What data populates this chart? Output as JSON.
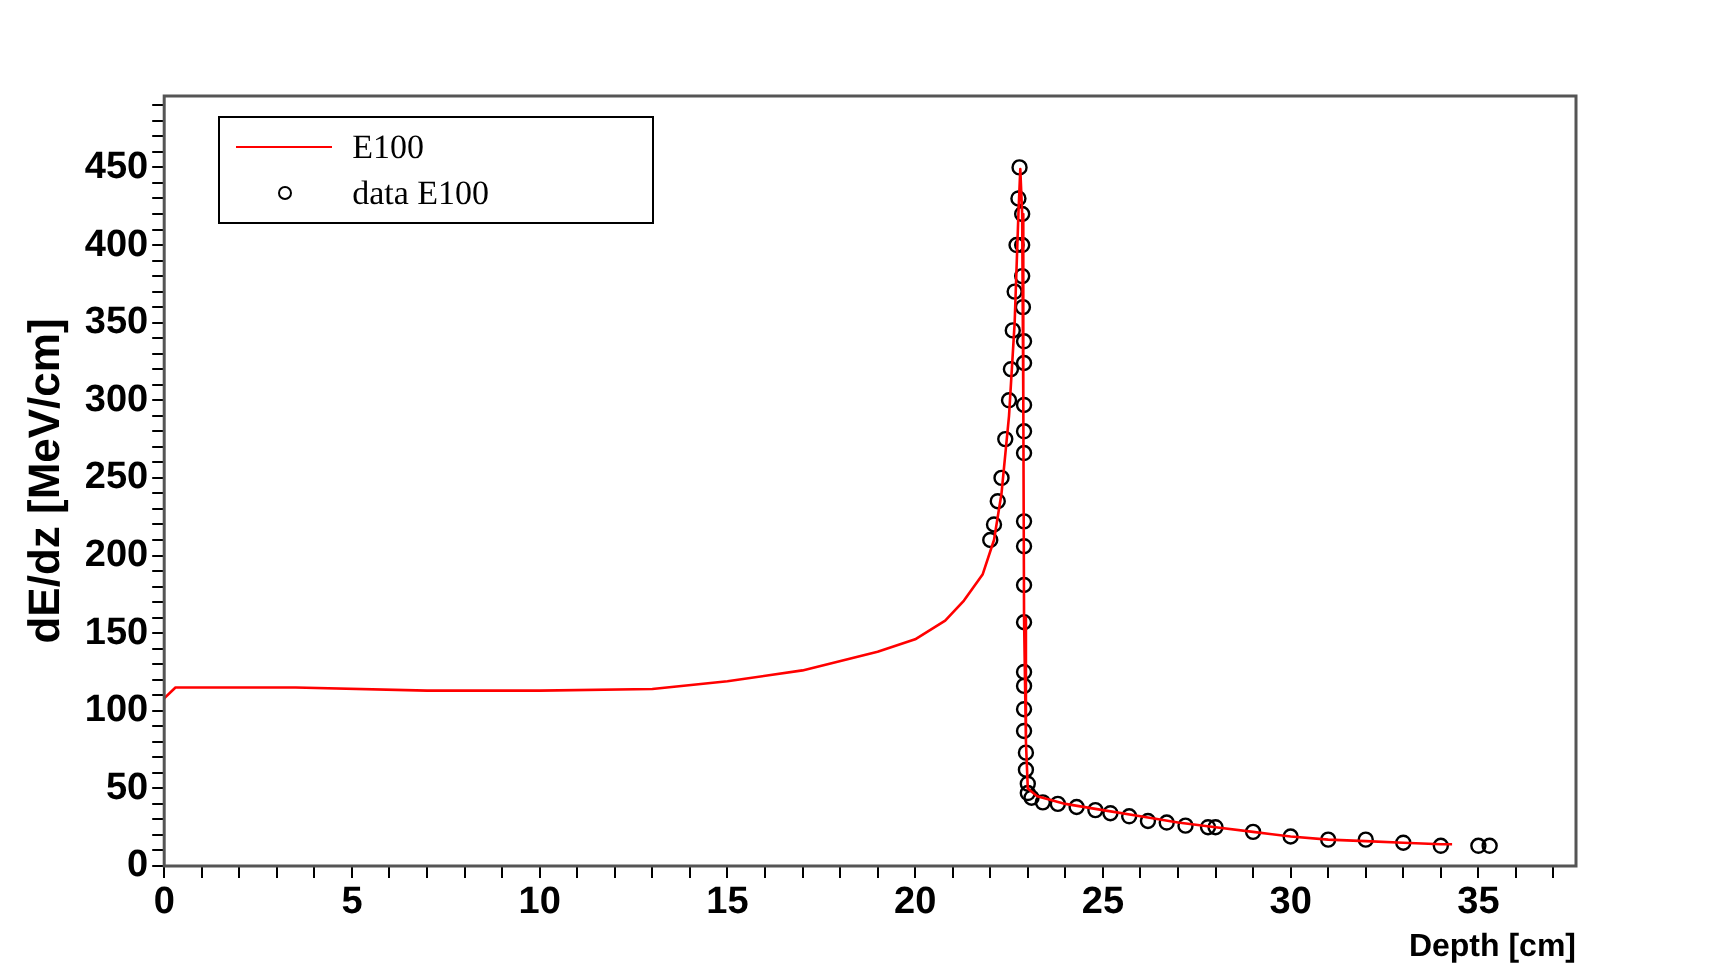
{
  "chart_data": {
    "type": "line",
    "xlabel": "Depth [cm]",
    "ylabel": "dE/dz [MeV/cm]",
    "xlim": [
      0,
      37.6
    ],
    "ylim": [
      0,
      496
    ],
    "xticks": [
      0,
      {
        "value": 1,
        "label": null
      },
      {
        "value": 2,
        "label": null
      },
      {
        "value": 3,
        "label": null
      },
      {
        "value": 4,
        "label": null
      },
      5,
      {
        "value": 6,
        "label": null
      },
      {
        "value": 7,
        "label": null
      },
      {
        "value": 8,
        "label": null
      },
      {
        "value": 9,
        "label": null
      },
      10,
      {
        "value": 11,
        "label": null
      },
      {
        "value": 12,
        "label": null
      },
      {
        "value": 13,
        "label": null
      },
      {
        "value": 14,
        "label": null
      },
      15,
      {
        "value": 16,
        "label": null
      },
      {
        "value": 17,
        "label": null
      },
      {
        "value": 18,
        "label": null
      },
      {
        "value": 19,
        "label": null
      },
      20,
      {
        "value": 21,
        "label": null
      },
      {
        "value": 22,
        "label": null
      },
      {
        "value": 23,
        "label": null
      },
      {
        "value": 24,
        "label": null
      },
      25,
      {
        "value": 26,
        "label": null
      },
      {
        "value": 27,
        "label": null
      },
      {
        "value": 28,
        "label": null
      },
      {
        "value": 29,
        "label": null
      },
      30,
      {
        "value": 31,
        "label": null
      },
      {
        "value": 32,
        "label": null
      },
      {
        "value": 33,
        "label": null
      },
      {
        "value": 34,
        "label": null
      },
      35,
      {
        "value": 36,
        "label": null
      },
      {
        "value": 37,
        "label": null
      }
    ],
    "yticks": [
      0,
      {
        "value": 10,
        "label": null
      },
      {
        "value": 20,
        "label": null
      },
      {
        "value": 30,
        "label": null
      },
      {
        "value": 40,
        "label": null
      },
      50,
      {
        "value": 60,
        "label": null
      },
      {
        "value": 70,
        "label": null
      },
      {
        "value": 80,
        "label": null
      },
      {
        "value": 90,
        "label": null
      },
      100,
      {
        "value": 110,
        "label": null
      },
      {
        "value": 120,
        "label": null
      },
      {
        "value": 130,
        "label": null
      },
      {
        "value": 140,
        "label": null
      },
      150,
      {
        "value": 160,
        "label": null
      },
      {
        "value": 170,
        "label": null
      },
      {
        "value": 180,
        "label": null
      },
      {
        "value": 190,
        "label": null
      },
      200,
      {
        "value": 210,
        "label": null
      },
      {
        "value": 220,
        "label": null
      },
      {
        "value": 230,
        "label": null
      },
      {
        "value": 240,
        "label": null
      },
      250,
      {
        "value": 260,
        "label": null
      },
      {
        "value": 270,
        "label": null
      },
      {
        "value": 280,
        "label": null
      },
      {
        "value": 290,
        "label": null
      },
      300,
      {
        "value": 310,
        "label": null
      },
      {
        "value": 320,
        "label": null
      },
      {
        "value": 330,
        "label": null
      },
      {
        "value": 340,
        "label": null
      },
      350,
      {
        "value": 360,
        "label": null
      },
      {
        "value": 370,
        "label": null
      },
      {
        "value": 380,
        "label": null
      },
      {
        "value": 390,
        "label": null
      },
      400,
      {
        "value": 410,
        "label": null
      },
      {
        "value": 420,
        "label": null
      },
      {
        "value": 430,
        "label": null
      },
      {
        "value": 440,
        "label": null
      },
      450,
      {
        "value": 460,
        "label": null
      },
      {
        "value": 470,
        "label": null
      },
      {
        "value": 480,
        "label": null
      },
      {
        "value": 490,
        "label": null
      }
    ],
    "legend": "top left",
    "grid": false,
    "series": [
      {
        "name": "E100",
        "color": "#ff0000",
        "marker": "none",
        "line_style": "solid",
        "x": [
          0,
          0.3,
          3.5,
          7,
          10,
          13,
          15,
          17,
          19,
          20,
          20.8,
          21.3,
          21.8,
          22.1,
          22.3,
          22.5,
          22.65,
          22.75,
          22.8,
          22.85,
          22.88,
          22.9,
          22.95,
          23.0,
          23.25,
          24,
          25,
          26,
          27,
          28,
          29,
          30,
          31,
          32,
          33,
          34,
          34.3
        ],
        "values": [
          108,
          115,
          115,
          113,
          113,
          114,
          119,
          126,
          138,
          146,
          158,
          171,
          188,
          210,
          240,
          290,
          350,
          420,
          449,
          420,
          300,
          160,
          80,
          50,
          45,
          40,
          36,
          32,
          28,
          25,
          22,
          19,
          17,
          16,
          15,
          14,
          14
        ]
      },
      {
        "name": "data E100",
        "type": "scatter",
        "color": "#000000",
        "marker": "circle",
        "x": [
          22.0,
          22.1,
          22.2,
          22.3,
          22.4,
          22.5,
          22.55,
          22.6,
          22.65,
          22.7,
          22.75,
          22.78,
          22.85,
          22.85,
          22.85,
          22.87,
          22.9,
          22.9,
          22.9,
          22.9,
          22.9,
          22.9,
          22.9,
          22.9,
          22.9,
          22.9,
          22.9,
          22.9,
          22.9,
          22.95,
          22.95,
          23.0,
          23.0,
          23.1,
          23.4,
          23.8,
          24.3,
          24.8,
          25.2,
          25.7,
          26.2,
          26.7,
          27.2,
          27.8,
          28.0,
          29.0,
          30.0,
          31.0,
          32.0,
          33.0,
          34.0,
          35.0,
          35.3
        ],
        "values": [
          210,
          220,
          235,
          250,
          275,
          300,
          320,
          345,
          370,
          400,
          430,
          450,
          420,
          400,
          380,
          360,
          338,
          324,
          297,
          280,
          266,
          222,
          206,
          181,
          157,
          125,
          116,
          101,
          87,
          73,
          62,
          53,
          47,
          44,
          41,
          40,
          38,
          36,
          34,
          32,
          29,
          28,
          26,
          25,
          25,
          22,
          19,
          17,
          17,
          15,
          13,
          13,
          13
        ]
      }
    ]
  }
}
